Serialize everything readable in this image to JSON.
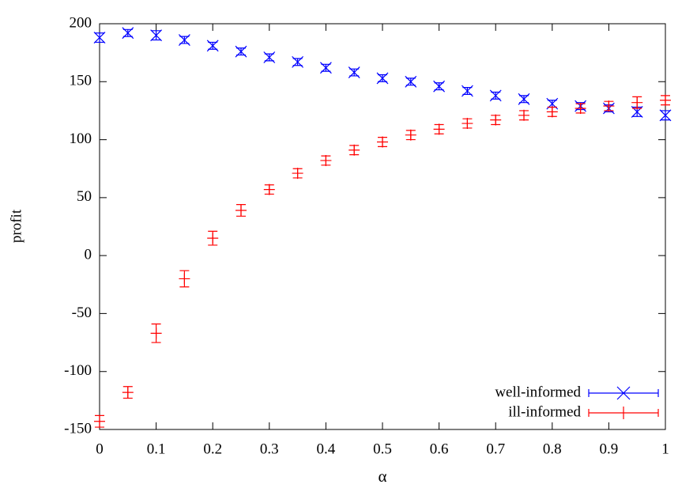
{
  "chart_data": {
    "type": "errorbar",
    "xlabel": "α",
    "ylabel": "profit",
    "xlim": [
      0,
      1
    ],
    "xticks": [
      0,
      0.1,
      0.2,
      0.3,
      0.4,
      0.5,
      0.6,
      0.7,
      0.8,
      0.9,
      1
    ],
    "ylim": [
      -150,
      200
    ],
    "yticks": [
      -150,
      -100,
      -50,
      0,
      50,
      100,
      150,
      200
    ],
    "legend": "bottom-right",
    "x": [
      0,
      0.05,
      0.1,
      0.15,
      0.2,
      0.25,
      0.3,
      0.35,
      0.4,
      0.45,
      0.5,
      0.55,
      0.6,
      0.65,
      0.7,
      0.75,
      0.8,
      0.85,
      0.9,
      0.95,
      1
    ],
    "series": [
      {
        "name": "well-informed",
        "color": "#0000ff",
        "marker": "x",
        "values": [
          188,
          192,
          190,
          186,
          181,
          176,
          171,
          167,
          162,
          158,
          153,
          150,
          146,
          142,
          138,
          135,
          131,
          129,
          127,
          124,
          121
        ],
        "errors": [
          4,
          3,
          4,
          3,
          3,
          3,
          3,
          3,
          3,
          3,
          3,
          3,
          3,
          3,
          3,
          3,
          3,
          3,
          3,
          4,
          4
        ]
      },
      {
        "name": "ill-informed",
        "color": "#ff0000",
        "marker": "+",
        "values": [
          -143,
          -118,
          -67,
          -20,
          15,
          39,
          57,
          71,
          82,
          91,
          98,
          104,
          109,
          114,
          117,
          121,
          124,
          127,
          129,
          132,
          134
        ],
        "errors": [
          5,
          5,
          8,
          7,
          6,
          5,
          4,
          4,
          4,
          4,
          4,
          4,
          4,
          4,
          4,
          4,
          4,
          4,
          4,
          5,
          4
        ]
      }
    ]
  }
}
